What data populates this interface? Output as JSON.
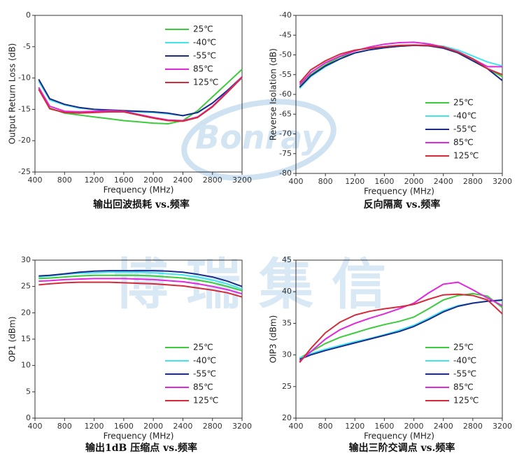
{
  "watermark": [
    "Bonray",
    "博瑞集信"
  ],
  "chart_data": [
    {
      "type": "line",
      "title": "输出回波损耗  vs.频率",
      "xlabel": "Frequency (MHz)",
      "ylabel": "Output Return Loss (dB)",
      "x": [
        450,
        600,
        800,
        1000,
        1200,
        1400,
        1600,
        1800,
        2000,
        2200,
        2400,
        2600,
        2800,
        3000,
        3200
      ],
      "xlim": [
        400,
        3200
      ],
      "xticks": [
        400,
        800,
        1200,
        1600,
        2000,
        2400,
        2800,
        3200
      ],
      "ylim": [
        -25,
        0
      ],
      "yticks": [
        -25,
        -20,
        -15,
        -10,
        -5,
        0
      ],
      "legend": "upper right",
      "series": [
        {
          "name": "25℃",
          "color": "#3ccb3c",
          "values": [
            -11.5,
            -14.8,
            -15.6,
            -15.9,
            -16.2,
            -16.5,
            -16.8,
            -17.0,
            -17.2,
            -17.3,
            -16.8,
            -15.2,
            -13.0,
            -10.8,
            -8.6
          ]
        },
        {
          "name": "-40℃",
          "color": "#40e6ee",
          "values": [
            -10.5,
            -13.5,
            -14.3,
            -14.8,
            -15.0,
            -15.2,
            -15.3,
            -15.4,
            -15.5,
            -15.7,
            -16.0,
            -15.5,
            -14.0,
            -12.0,
            -10.0
          ]
        },
        {
          "name": "-55℃",
          "color": "#1c2a8c",
          "values": [
            -10.2,
            -13.3,
            -14.2,
            -14.7,
            -15.0,
            -15.1,
            -15.2,
            -15.3,
            -15.4,
            -15.6,
            -16.0,
            -15.5,
            -14.0,
            -12.0,
            -9.8
          ]
        },
        {
          "name": "85℃",
          "color": "#e028dc",
          "values": [
            -11.5,
            -14.5,
            -15.3,
            -15.4,
            -15.3,
            -15.2,
            -15.3,
            -15.8,
            -16.3,
            -16.7,
            -16.8,
            -16.2,
            -14.5,
            -12.2,
            -9.8
          ]
        },
        {
          "name": "125℃",
          "color": "#d42a3a",
          "values": [
            -11.8,
            -14.9,
            -15.5,
            -15.6,
            -15.5,
            -15.4,
            -15.4,
            -15.9,
            -16.4,
            -16.8,
            -16.9,
            -16.3,
            -14.6,
            -12.3,
            -9.9
          ]
        }
      ]
    },
    {
      "type": "line",
      "title": "反向隔离  vs.频率",
      "xlabel": "Frequency (MHz)",
      "ylabel": "Reverse Isolation (dB)",
      "x": [
        450,
        600,
        800,
        1000,
        1200,
        1400,
        1600,
        1800,
        2000,
        2200,
        2400,
        2600,
        2800,
        3000,
        3200
      ],
      "xlim": [
        400,
        3200
      ],
      "xticks": [
        400,
        800,
        1200,
        1600,
        2000,
        2400,
        2800,
        3200
      ],
      "ylim": [
        -80,
        -40
      ],
      "yticks": [
        -80,
        -75,
        -70,
        -65,
        -60,
        -55,
        -50,
        -45,
        -40
      ],
      "legend": "lower right",
      "series": [
        {
          "name": "25℃",
          "color": "#3ccb3c",
          "values": [
            -58,
            -55,
            -52.5,
            -50.5,
            -49.5,
            -48.7,
            -48.2,
            -47.8,
            -47.6,
            -47.7,
            -48.2,
            -49.5,
            -51.5,
            -53.5,
            -55.5
          ]
        },
        {
          "name": "-40℃",
          "color": "#40e6ee",
          "values": [
            -58.5,
            -55.5,
            -53,
            -51,
            -49.5,
            -48.7,
            -48.2,
            -47.8,
            -47.6,
            -47.5,
            -47.8,
            -48.8,
            -50.3,
            -51.8,
            -52.8
          ]
        },
        {
          "name": "-55℃",
          "color": "#1c2a8c",
          "values": [
            -58.2,
            -55.3,
            -52.8,
            -51,
            -49.5,
            -48.7,
            -48.2,
            -47.8,
            -47.6,
            -47.7,
            -48.3,
            -49.5,
            -51.5,
            -53.5,
            -56.5
          ]
        },
        {
          "name": "85℃",
          "color": "#e028dc",
          "values": [
            -57.5,
            -54.5,
            -52,
            -50.3,
            -49,
            -48,
            -47.3,
            -46.9,
            -46.8,
            -47.2,
            -48,
            -49.2,
            -51,
            -53,
            -53
          ]
        },
        {
          "name": "125℃",
          "color": "#d42a3a",
          "values": [
            -57,
            -53.8,
            -51.5,
            -49.8,
            -48.8,
            -48.3,
            -47.9,
            -47.6,
            -47.5,
            -47.6,
            -48,
            -49.3,
            -51,
            -53.5,
            -55
          ]
        }
      ]
    },
    {
      "type": "line",
      "title": "输出1dB  压缩点  vs.频率",
      "xlabel": "Frequency (MHz)",
      "ylabel": "OP1 (dBm)",
      "x": [
        450,
        600,
        800,
        1000,
        1200,
        1400,
        1600,
        1800,
        2000,
        2200,
        2400,
        2600,
        2800,
        3000,
        3200
      ],
      "xlim": [
        400,
        3200
      ],
      "xticks": [
        400,
        800,
        1200,
        1600,
        2000,
        2400,
        2800,
        3200
      ],
      "ylim": [
        0,
        30
      ],
      "yticks": [
        0,
        5,
        10,
        15,
        20,
        25,
        30
      ],
      "legend": "lower right",
      "series": [
        {
          "name": "25℃",
          "color": "#3ccb3c",
          "values": [
            26.5,
            26.6,
            26.8,
            27.0,
            27.1,
            27.1,
            27.1,
            27.1,
            27.0,
            26.8,
            26.6,
            26.2,
            25.7,
            25.0,
            24.2
          ]
        },
        {
          "name": "-40℃",
          "color": "#40e6ee",
          "values": [
            26.8,
            27.0,
            27.3,
            27.5,
            27.6,
            27.7,
            27.7,
            27.7,
            27.6,
            27.4,
            27.2,
            26.8,
            26.2,
            25.5,
            24.5
          ]
        },
        {
          "name": "-55℃",
          "color": "#1c2a8c",
          "values": [
            27.0,
            27.1,
            27.4,
            27.7,
            27.9,
            28.0,
            28.0,
            28.0,
            28.0,
            27.9,
            27.7,
            27.3,
            26.8,
            26.0,
            25.0
          ]
        },
        {
          "name": "85℃",
          "color": "#e028dc",
          "values": [
            26.0,
            26.1,
            26.3,
            26.4,
            26.5,
            26.5,
            26.5,
            26.4,
            26.3,
            26.1,
            25.9,
            25.5,
            25.0,
            24.4,
            23.6
          ]
        },
        {
          "name": "125℃",
          "color": "#d42a3a",
          "values": [
            25.3,
            25.5,
            25.7,
            25.8,
            25.8,
            25.8,
            25.7,
            25.6,
            25.5,
            25.3,
            25.1,
            24.7,
            24.3,
            23.8,
            23.0
          ]
        }
      ]
    },
    {
      "type": "line",
      "title": "输出三阶交调点  vs.频率",
      "xlabel": "Frequency (MHz)",
      "ylabel": "OIP3 (dBm)",
      "x": [
        450,
        600,
        800,
        1000,
        1200,
        1400,
        1600,
        1800,
        2000,
        2200,
        2400,
        2600,
        2800,
        3000,
        3200
      ],
      "xlim": [
        400,
        3200
      ],
      "xticks": [
        400,
        800,
        1200,
        1600,
        2000,
        2400,
        2800,
        3200
      ],
      "ylim": [
        20,
        45
      ],
      "yticks": [
        20,
        25,
        30,
        35,
        40,
        45
      ],
      "legend": "lower right",
      "series": [
        {
          "name": "25℃",
          "color": "#3ccb3c",
          "values": [
            29.5,
            30.5,
            31.8,
            32.8,
            33.5,
            34.2,
            34.8,
            35.3,
            36.0,
            37.3,
            38.7,
            39.4,
            39.7,
            39.3,
            37.5
          ]
        },
        {
          "name": "-40℃",
          "color": "#40e6ee",
          "values": [
            29.5,
            30.2,
            30.9,
            31.5,
            32.1,
            32.6,
            33.2,
            33.9,
            34.7,
            35.8,
            37.0,
            37.8,
            38.2,
            38.5,
            38.6
          ]
        },
        {
          "name": "-55℃",
          "color": "#1c2a8c",
          "values": [
            29.3,
            30.0,
            30.7,
            31.3,
            31.9,
            32.5,
            33.1,
            33.7,
            34.5,
            35.6,
            36.8,
            37.7,
            38.2,
            38.5,
            38.7
          ]
        },
        {
          "name": "85℃",
          "color": "#e028dc",
          "values": [
            29.0,
            30.5,
            32.5,
            34.0,
            35.0,
            35.8,
            36.5,
            37.3,
            38.2,
            39.8,
            41.2,
            41.5,
            40.3,
            39.0,
            37.8
          ]
        },
        {
          "name": "125℃",
          "color": "#d42a3a",
          "values": [
            28.8,
            31.0,
            33.5,
            35.2,
            36.3,
            36.9,
            37.3,
            37.6,
            38.0,
            38.8,
            39.5,
            39.6,
            39.4,
            38.7,
            36.5
          ]
        }
      ]
    }
  ]
}
